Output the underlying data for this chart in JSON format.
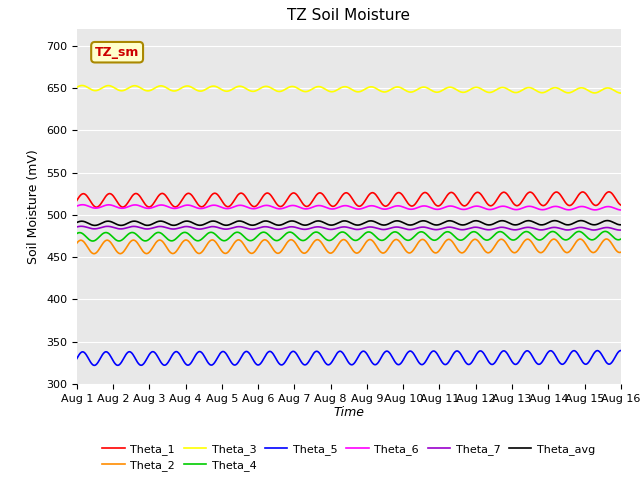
{
  "title": "TZ Soil Moisture",
  "xlabel": "Time",
  "ylabel": "Soil Moisture (mV)",
  "ylim": [
    300,
    720
  ],
  "xlim": [
    0,
    15
  ],
  "yticks": [
    300,
    350,
    400,
    450,
    500,
    550,
    600,
    650,
    700
  ],
  "xtick_labels": [
    "Aug 1",
    "Aug 2",
    "Aug 3",
    "Aug 4",
    "Aug 5",
    "Aug 6",
    "Aug 7",
    "Aug 8",
    "Aug 9",
    "Aug 10",
    "Aug 11",
    "Aug 12",
    "Aug 13",
    "Aug 14",
    "Aug 15",
    "Aug 16"
  ],
  "plot_bg": "#e8e8e8",
  "fig_bg": "#ffffff",
  "series": [
    {
      "name": "Theta_1",
      "color": "#ff0000",
      "base": 517,
      "amp": 8,
      "freq": 1.38,
      "phase": 0.0,
      "trend": 0.15
    },
    {
      "name": "Theta_2",
      "color": "#ff8c00",
      "base": 462,
      "amp": 8,
      "freq": 1.38,
      "phase": 0.6,
      "trend": 0.1
    },
    {
      "name": "Theta_3",
      "color": "#ffff00",
      "base": 650,
      "amp": 3,
      "freq": 1.38,
      "phase": 0.3,
      "trend": -0.2
    },
    {
      "name": "Theta_4",
      "color": "#00cc00",
      "base": 474,
      "amp": 5,
      "freq": 1.38,
      "phase": 0.9,
      "trend": 0.1
    },
    {
      "name": "Theta_5",
      "color": "#0000ff",
      "base": 330,
      "amp": 8,
      "freq": 1.55,
      "phase": 0.0,
      "trend": 0.1
    },
    {
      "name": "Theta_6",
      "color": "#ff00ff",
      "base": 510,
      "amp": 2,
      "freq": 1.38,
      "phase": 0.2,
      "trend": -0.15
    },
    {
      "name": "Theta_7",
      "color": "#9900cc",
      "base": 485,
      "amp": 1.5,
      "freq": 1.38,
      "phase": 0.5,
      "trend": -0.1
    },
    {
      "name": "Theta_avg",
      "color": "#000000",
      "base": 490,
      "amp": 2.5,
      "freq": 1.38,
      "phase": 0.4,
      "trend": 0.05
    }
  ],
  "annotation_text": "TZ_sm",
  "title_fontsize": 11,
  "axis_label_fontsize": 9,
  "tick_fontsize": 8,
  "legend_fontsize": 8
}
